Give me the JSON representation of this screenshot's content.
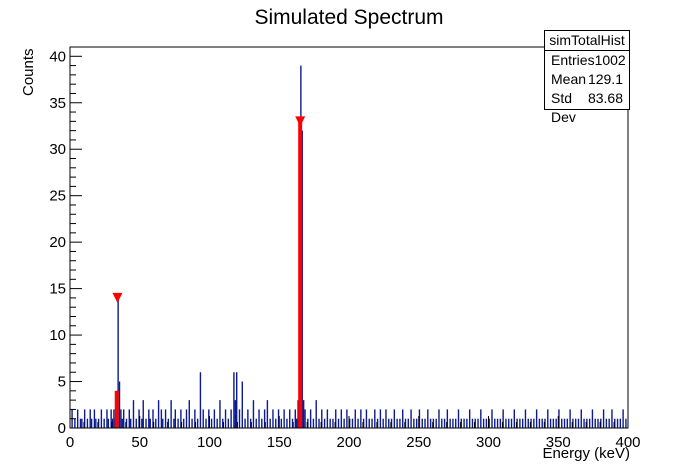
{
  "chart_data": {
    "type": "bar",
    "title": "Simulated Spectrum",
    "xlabel": "Energy (keV)",
    "ylabel": "Counts",
    "xlim": [
      0,
      400
    ],
    "ylim": [
      0,
      41
    ],
    "x_ticks": [
      0,
      50,
      100,
      150,
      200,
      250,
      300,
      350,
      400
    ],
    "y_ticks": [
      0,
      5,
      10,
      15,
      20,
      25,
      30,
      35,
      40
    ],
    "grid": false,
    "bin_width": 1,
    "colors": {
      "histogram": "#0b1a8c",
      "peak_fit": "#ff0000",
      "marker": "#ff0000"
    },
    "series": [
      {
        "name": "simTotalHist",
        "bins": [
          [
            1,
            2
          ],
          [
            3,
            1
          ],
          [
            5,
            2
          ],
          [
            7,
            1
          ],
          [
            8,
            1
          ],
          [
            10,
            2
          ],
          [
            12,
            1
          ],
          [
            14,
            2
          ],
          [
            15,
            1
          ],
          [
            17,
            2
          ],
          [
            18,
            1
          ],
          [
            20,
            1
          ],
          [
            22,
            2
          ],
          [
            24,
            1
          ],
          [
            26,
            2
          ],
          [
            27,
            1
          ],
          [
            29,
            2
          ],
          [
            30,
            1
          ],
          [
            31,
            2
          ],
          [
            32,
            1
          ],
          [
            33,
            4
          ],
          [
            34,
            14
          ],
          [
            35,
            5
          ],
          [
            36,
            2
          ],
          [
            37,
            1
          ],
          [
            38,
            2
          ],
          [
            40,
            1
          ],
          [
            42,
            2
          ],
          [
            43,
            1
          ],
          [
            45,
            3
          ],
          [
            47,
            1
          ],
          [
            49,
            2
          ],
          [
            51,
            1
          ],
          [
            52,
            3
          ],
          [
            54,
            1
          ],
          [
            56,
            2
          ],
          [
            57,
            1
          ],
          [
            59,
            2
          ],
          [
            61,
            1
          ],
          [
            63,
            3
          ],
          [
            65,
            2
          ],
          [
            66,
            1
          ],
          [
            68,
            2
          ],
          [
            70,
            1
          ],
          [
            72,
            3
          ],
          [
            74,
            1
          ],
          [
            75,
            2
          ],
          [
            77,
            1
          ],
          [
            79,
            2
          ],
          [
            81,
            1
          ],
          [
            83,
            2
          ],
          [
            85,
            3
          ],
          [
            87,
            1
          ],
          [
            89,
            2
          ],
          [
            91,
            1
          ],
          [
            93,
            6
          ],
          [
            95,
            2
          ],
          [
            97,
            1
          ],
          [
            99,
            2
          ],
          [
            101,
            1
          ],
          [
            103,
            2
          ],
          [
            105,
            1
          ],
          [
            107,
            3
          ],
          [
            109,
            1
          ],
          [
            111,
            2
          ],
          [
            113,
            1
          ],
          [
            115,
            2
          ],
          [
            117,
            6
          ],
          [
            118,
            3
          ],
          [
            119,
            6
          ],
          [
            121,
            2
          ],
          [
            123,
            5
          ],
          [
            125,
            1
          ],
          [
            127,
            2
          ],
          [
            129,
            1
          ],
          [
            131,
            3
          ],
          [
            133,
            1
          ],
          [
            135,
            2
          ],
          [
            137,
            1
          ],
          [
            139,
            2
          ],
          [
            141,
            3
          ],
          [
            143,
            1
          ],
          [
            145,
            2
          ],
          [
            147,
            1
          ],
          [
            149,
            2
          ],
          [
            151,
            1
          ],
          [
            153,
            2
          ],
          [
            155,
            1
          ],
          [
            157,
            2
          ],
          [
            159,
            1
          ],
          [
            161,
            2
          ],
          [
            162,
            1
          ],
          [
            163,
            3
          ],
          [
            164,
            20
          ],
          [
            165,
            39
          ],
          [
            166,
            32
          ],
          [
            167,
            3
          ],
          [
            168,
            2
          ],
          [
            170,
            1
          ],
          [
            172,
            2
          ],
          [
            174,
            1
          ],
          [
            176,
            3
          ],
          [
            178,
            1
          ],
          [
            180,
            2
          ],
          [
            182,
            1
          ],
          [
            184,
            2
          ],
          [
            186,
            1
          ],
          [
            188,
            1
          ],
          [
            190,
            2
          ],
          [
            192,
            1
          ],
          [
            194,
            2
          ],
          [
            196,
            1
          ],
          [
            198,
            2
          ],
          [
            200,
            1
          ],
          [
            202,
            1
          ],
          [
            204,
            2
          ],
          [
            206,
            1
          ],
          [
            208,
            2
          ],
          [
            210,
            1
          ],
          [
            212,
            2
          ],
          [
            214,
            1
          ],
          [
            216,
            1
          ],
          [
            218,
            2
          ],
          [
            220,
            1
          ],
          [
            222,
            2
          ],
          [
            224,
            1
          ],
          [
            226,
            2
          ],
          [
            228,
            1
          ],
          [
            230,
            1
          ],
          [
            232,
            2
          ],
          [
            234,
            1
          ],
          [
            236,
            1
          ],
          [
            238,
            2
          ],
          [
            240,
            1
          ],
          [
            242,
            1
          ],
          [
            244,
            2
          ],
          [
            246,
            1
          ],
          [
            248,
            1
          ],
          [
            250,
            2
          ],
          [
            252,
            1
          ],
          [
            254,
            1
          ],
          [
            256,
            2
          ],
          [
            258,
            1
          ],
          [
            260,
            1
          ],
          [
            262,
            1
          ],
          [
            264,
            2
          ],
          [
            266,
            1
          ],
          [
            268,
            1
          ],
          [
            270,
            2
          ],
          [
            272,
            1
          ],
          [
            274,
            1
          ],
          [
            276,
            1
          ],
          [
            278,
            2
          ],
          [
            280,
            1
          ],
          [
            282,
            1
          ],
          [
            284,
            1
          ],
          [
            286,
            2
          ],
          [
            288,
            1
          ],
          [
            290,
            1
          ],
          [
            292,
            1
          ],
          [
            294,
            2
          ],
          [
            296,
            1
          ],
          [
            298,
            1
          ],
          [
            300,
            1
          ],
          [
            302,
            2
          ],
          [
            304,
            1
          ],
          [
            306,
            1
          ],
          [
            308,
            1
          ],
          [
            310,
            2
          ],
          [
            312,
            1
          ],
          [
            314,
            1
          ],
          [
            316,
            1
          ],
          [
            318,
            2
          ],
          [
            320,
            1
          ],
          [
            322,
            1
          ],
          [
            324,
            1
          ],
          [
            326,
            2
          ],
          [
            328,
            1
          ],
          [
            330,
            1
          ],
          [
            332,
            1
          ],
          [
            334,
            2
          ],
          [
            336,
            1
          ],
          [
            338,
            1
          ],
          [
            340,
            1
          ],
          [
            342,
            2
          ],
          [
            344,
            1
          ],
          [
            346,
            1
          ],
          [
            348,
            1
          ],
          [
            350,
            2
          ],
          [
            352,
            1
          ],
          [
            354,
            1
          ],
          [
            356,
            1
          ],
          [
            358,
            2
          ],
          [
            360,
            1
          ],
          [
            362,
            1
          ],
          [
            364,
            1
          ],
          [
            366,
            2
          ],
          [
            368,
            1
          ],
          [
            370,
            1
          ],
          [
            372,
            1
          ],
          [
            374,
            2
          ],
          [
            376,
            1
          ],
          [
            378,
            1
          ],
          [
            380,
            1
          ],
          [
            382,
            2
          ],
          [
            384,
            1
          ],
          [
            386,
            1
          ],
          [
            388,
            2
          ],
          [
            390,
            1
          ],
          [
            392,
            1
          ],
          [
            394,
            1
          ],
          [
            396,
            2
          ],
          [
            398,
            1
          ]
        ]
      }
    ],
    "peak_fits": [
      {
        "x": 33.5,
        "y": 4
      },
      {
        "x": 165,
        "y": 33
      }
    ],
    "peak_markers": [
      {
        "x": 34,
        "y": 14
      },
      {
        "x": 165,
        "y": 33
      }
    ]
  },
  "stats_box": {
    "title": "simTotalHist",
    "rows": [
      {
        "label": "Entries",
        "value": "1002"
      },
      {
        "label": "Mean",
        "value": "129.1"
      },
      {
        "label": "Std Dev",
        "value": "83.68"
      }
    ]
  }
}
